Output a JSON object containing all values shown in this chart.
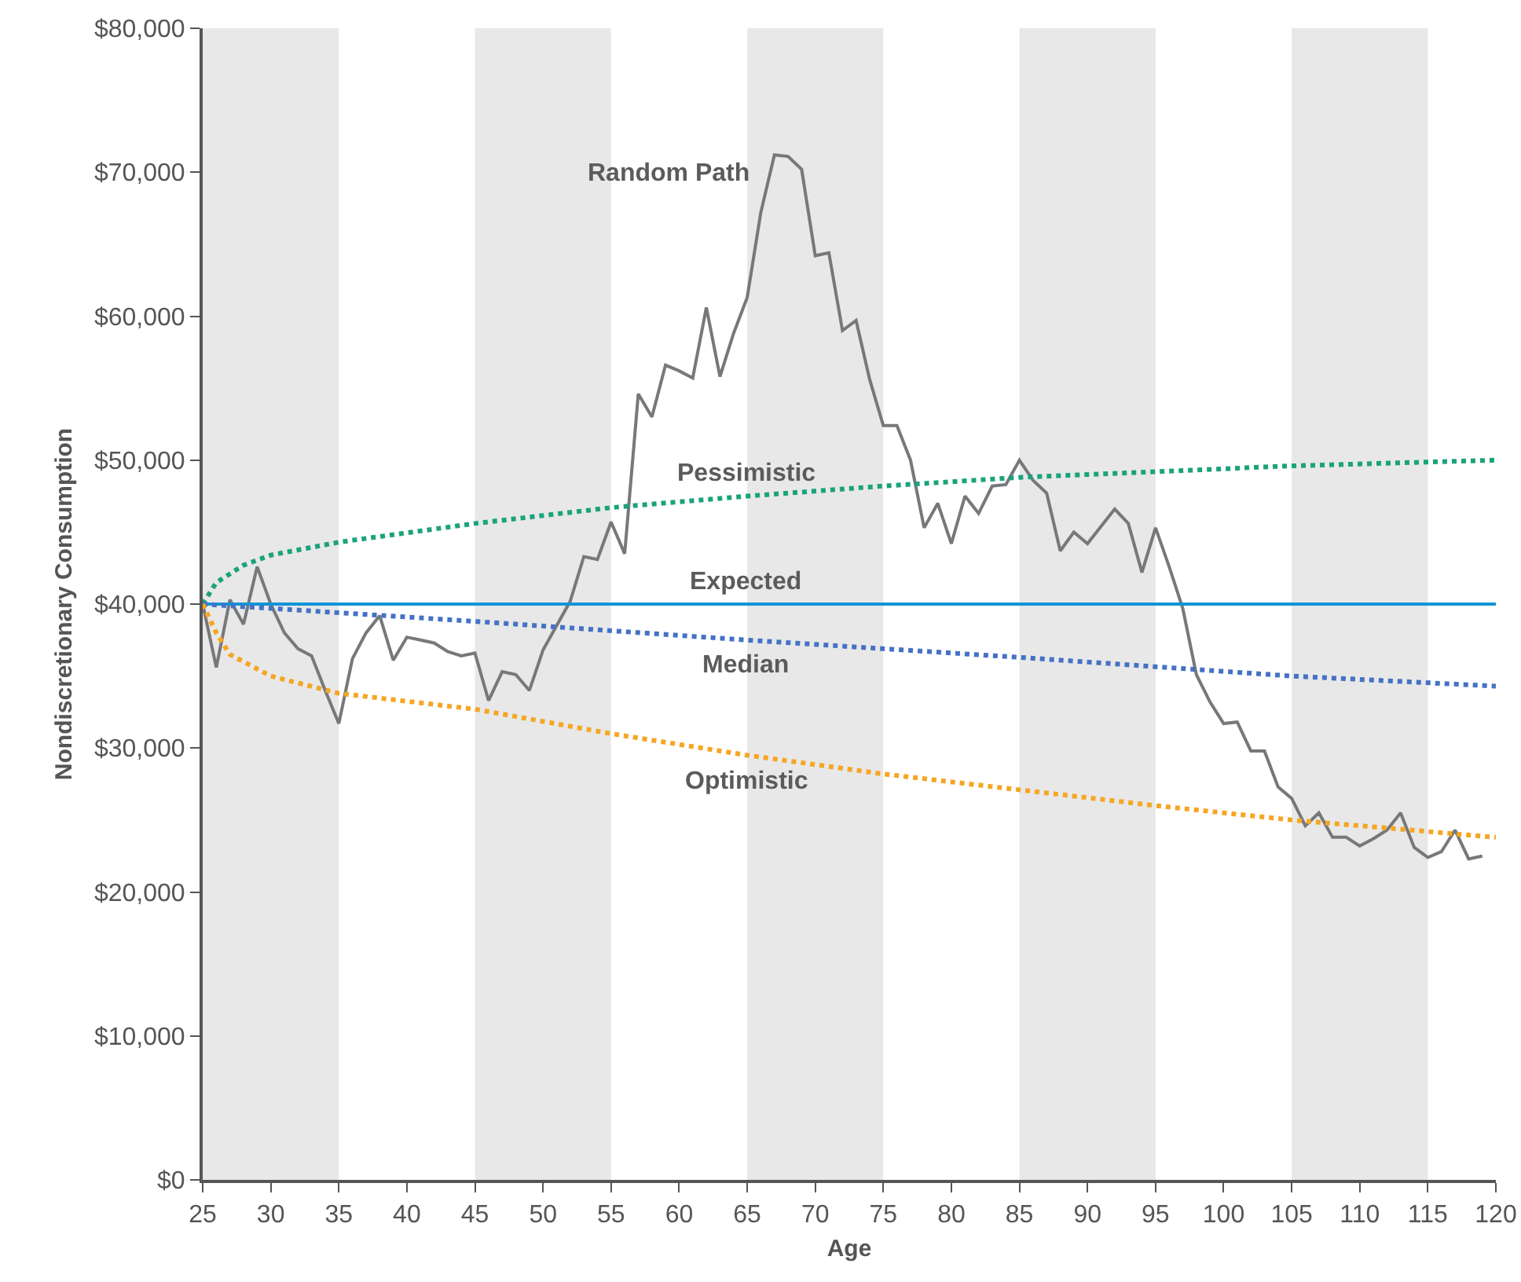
{
  "chart_data": {
    "type": "line",
    "xlabel": "Age",
    "ylabel": "Nondiscretionary Consumption",
    "xlim": [
      25,
      120
    ],
    "xticks": [
      25,
      30,
      35,
      40,
      45,
      50,
      55,
      60,
      65,
      70,
      75,
      80,
      85,
      90,
      95,
      100,
      105,
      110,
      115,
      120
    ],
    "ylim": [
      0,
      80000
    ],
    "yticks": [
      {
        "value": 0,
        "label": "$0"
      },
      {
        "value": 10000,
        "label": "$10,000"
      },
      {
        "value": 20000,
        "label": "$20,000"
      },
      {
        "value": 30000,
        "label": "$30,000"
      },
      {
        "value": 40000,
        "label": "$40,000"
      },
      {
        "value": 50000,
        "label": "$50,000"
      },
      {
        "value": 60000,
        "label": "$60,000"
      },
      {
        "value": 70000,
        "label": "$70,000"
      },
      {
        "value": 80000,
        "label": "$80,000"
      }
    ],
    "grid": false,
    "marker": "none",
    "bands": [
      {
        "axis": "x",
        "from": 25,
        "to": 35,
        "color": "#e8e8e8"
      },
      {
        "axis": "x",
        "from": 45,
        "to": 55,
        "color": "#e8e8e8"
      },
      {
        "axis": "x",
        "from": 65,
        "to": 75,
        "color": "#e8e8e8"
      },
      {
        "axis": "x",
        "from": 85,
        "to": 95,
        "color": "#e8e8e8"
      },
      {
        "axis": "x",
        "from": 105,
        "to": 115,
        "color": "#e8e8e8"
      }
    ],
    "series": [
      {
        "name": "Random Path",
        "color": "#77787b",
        "line_style": "solid",
        "x": [
          25,
          26,
          27,
          28,
          29,
          30,
          31,
          32,
          33,
          34,
          35,
          36,
          37,
          38,
          39,
          40,
          41,
          42,
          43,
          44,
          45,
          46,
          47,
          48,
          49,
          50,
          51,
          52,
          53,
          54,
          55,
          56,
          57,
          58,
          59,
          60,
          61,
          62,
          63,
          64,
          65,
          66,
          67,
          68,
          69,
          70,
          71,
          72,
          73,
          74,
          75,
          76,
          77,
          78,
          79,
          80,
          81,
          82,
          83,
          84,
          85,
          86,
          87,
          88,
          89,
          90,
          91,
          92,
          93,
          94,
          95,
          96,
          97,
          98,
          99,
          100,
          101,
          102,
          103,
          104,
          105,
          106,
          107,
          108,
          109,
          110,
          111,
          112,
          113,
          114,
          115,
          116,
          117,
          118,
          119
        ],
        "values": [
          40000,
          35600,
          40300,
          38600,
          42600,
          40000,
          38000,
          36900,
          36400,
          34000,
          31700,
          36200,
          38000,
          39200,
          36100,
          37700,
          37500,
          37300,
          36700,
          36400,
          36600,
          33300,
          35300,
          35100,
          34000,
          36800,
          38500,
          40200,
          43300,
          43100,
          45700,
          43500,
          54600,
          53000,
          56600,
          56200,
          55700,
          60600,
          55800,
          58800,
          61300,
          67200,
          71200,
          71100,
          70200,
          64200,
          64400,
          59000,
          59700,
          55600,
          52400,
          52400,
          50000,
          45300,
          47000,
          44200,
          47500,
          46300,
          48200,
          48300,
          50000,
          48600,
          47700,
          43700,
          45000,
          44200,
          45400,
          46600,
          45600,
          42200,
          45300,
          42600,
          39700,
          35100,
          33200,
          31700,
          31800,
          29800,
          29800,
          27300,
          26500,
          24600,
          25500,
          23800,
          23800,
          23200,
          23700,
          24300,
          25500,
          23100,
          22400,
          22800,
          24300,
          22300,
          22500
        ]
      },
      {
        "name": "Pessimistic",
        "color": "#1aa37a",
        "line_style": "dotted",
        "x": [
          25,
          26,
          28,
          30,
          35,
          45,
          55,
          65,
          75,
          85,
          95,
          105,
          120
        ],
        "values": [
          40000,
          41500,
          42700,
          43400,
          44300,
          45600,
          46700,
          47500,
          48200,
          48800,
          49200,
          49600,
          50000
        ]
      },
      {
        "name": "Expected",
        "color": "#0f95d7",
        "line_style": "solid",
        "x": [
          25,
          120
        ],
        "values": [
          40000,
          40000
        ]
      },
      {
        "name": "Median",
        "color": "#4472c4",
        "line_style": "dotted",
        "x": [
          25,
          45,
          65,
          85,
          105,
          120
        ],
        "values": [
          40000,
          38800,
          37500,
          36300,
          35000,
          34300
        ]
      },
      {
        "name": "Optimistic",
        "color": "#f5a623",
        "line_style": "dotted",
        "x": [
          25,
          26,
          27,
          30,
          35,
          45,
          55,
          65,
          75,
          85,
          95,
          105,
          120
        ],
        "values": [
          40000,
          38000,
          36500,
          35000,
          33800,
          32700,
          31000,
          29500,
          28200,
          27100,
          26000,
          25000,
          23800
        ]
      }
    ]
  }
}
